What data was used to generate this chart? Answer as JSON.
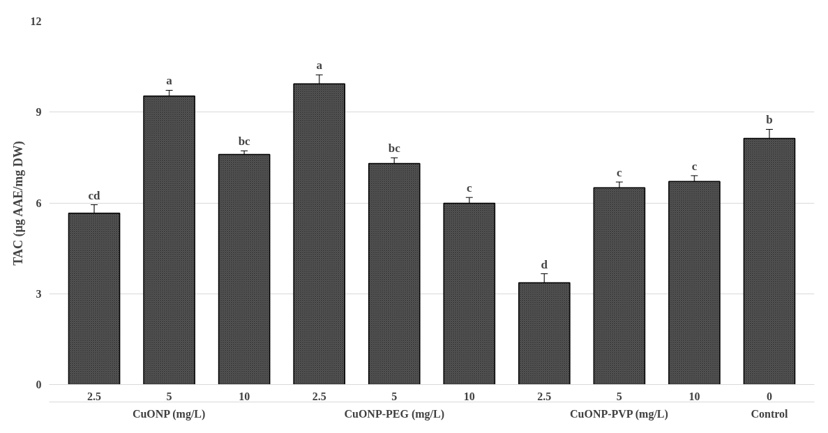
{
  "chart_data": {
    "type": "bar",
    "ylabel": "TAC (µg AAE/mg DW)",
    "categories": [
      "2.5",
      "5",
      "10",
      "2.5",
      "5",
      "10",
      "2.5",
      "5",
      "10",
      "0"
    ],
    "values": [
      5.66,
      9.53,
      7.6,
      9.93,
      7.3,
      5.99,
      3.36,
      6.5,
      6.71,
      8.13
    ],
    "errors": [
      0.28,
      0.19,
      0.12,
      0.3,
      0.19,
      0.19,
      0.3,
      0.19,
      0.19,
      0.3
    ],
    "value_labels": [
      "cd",
      "a",
      "bc",
      "a",
      "bc",
      "c",
      "d",
      "c",
      "c",
      "b"
    ],
    "annotations": [
      "CuONP (mg/L)",
      "CuONP-PEG (mg/L)",
      "CuONP-PVP (mg/L)",
      "Control"
    ],
    "color": "#5a5a5a",
    "ylim": [
      0,
      12
    ],
    "yticks": [
      0,
      3,
      6,
      9,
      12
    ],
    "grid": "y"
  }
}
